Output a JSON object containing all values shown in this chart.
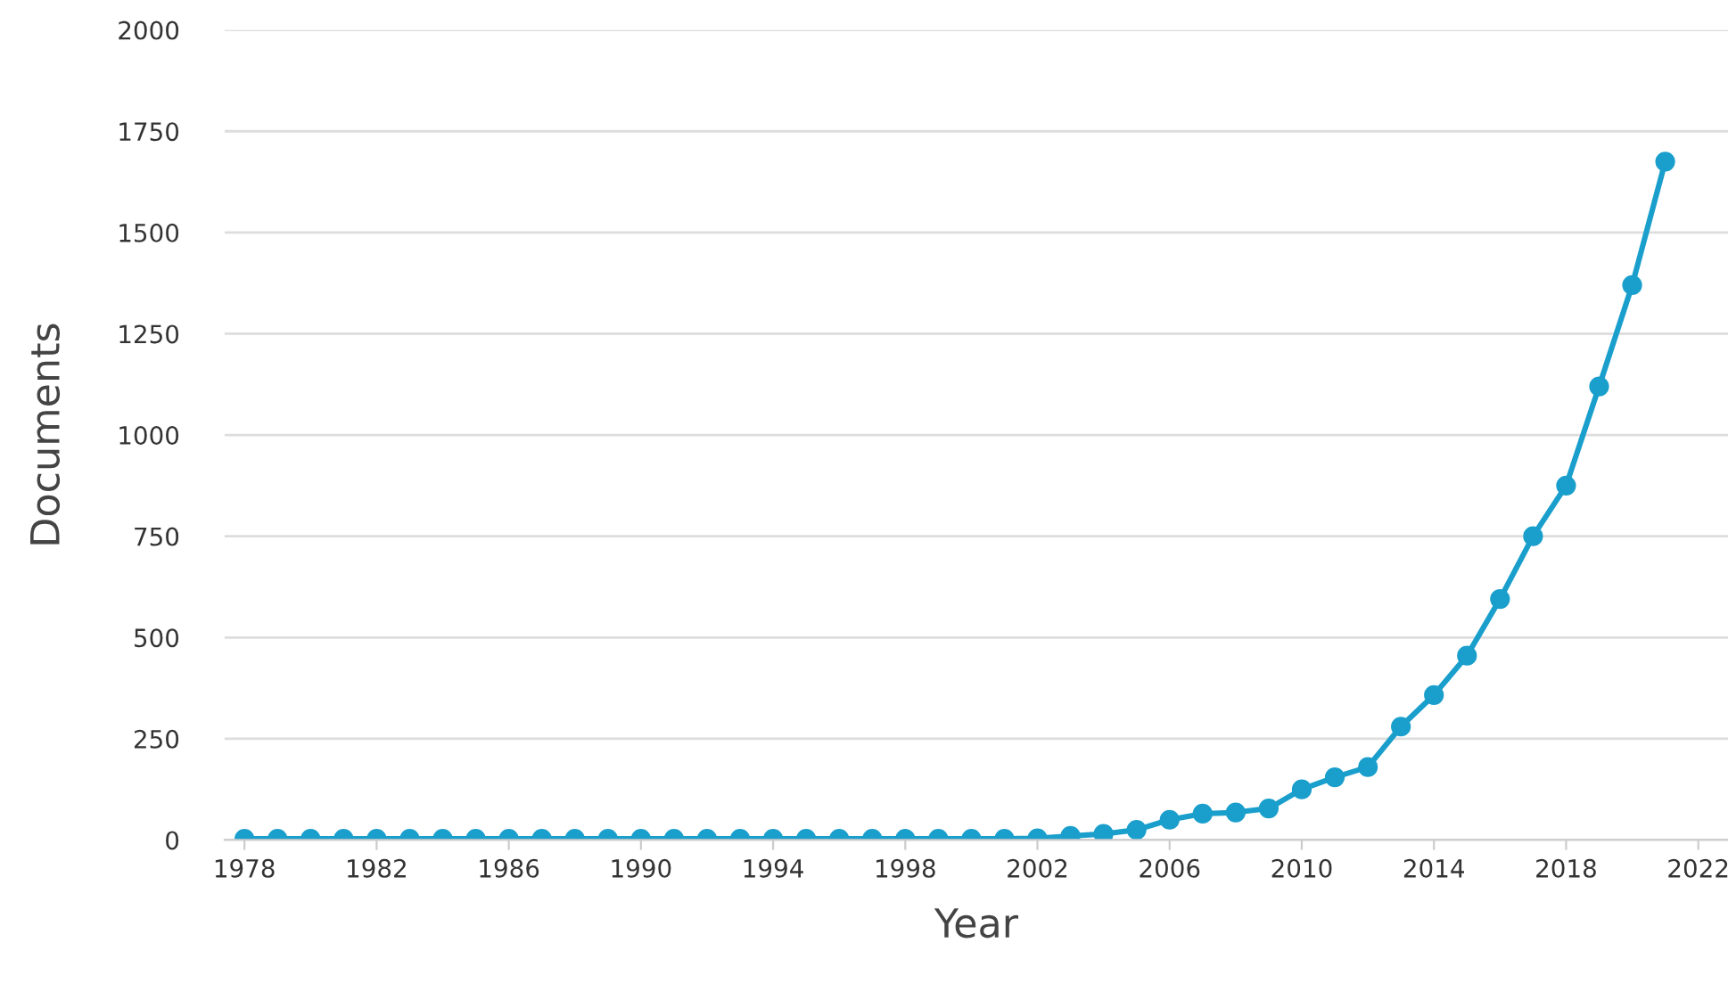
{
  "chart_data": {
    "type": "line",
    "xlabel": "Year",
    "ylabel": "Documents",
    "x": [
      1978,
      1979,
      1980,
      1981,
      1982,
      1983,
      1984,
      1985,
      1986,
      1987,
      1988,
      1989,
      1990,
      1991,
      1992,
      1993,
      1994,
      1995,
      1996,
      1997,
      1998,
      1999,
      2000,
      2001,
      2002,
      2003,
      2004,
      2005,
      2006,
      2007,
      2008,
      2009,
      2010,
      2011,
      2012,
      2013,
      2014,
      2015,
      2016,
      2017,
      2018,
      2019,
      2020,
      2021
    ],
    "series": [
      {
        "color": "#1a9fcc",
        "values": [
          3,
          3,
          3,
          3,
          3,
          3,
          3,
          3,
          3,
          3,
          3,
          3,
          3,
          3,
          3,
          3,
          3,
          3,
          3,
          3,
          3,
          3,
          3,
          3,
          4,
          10,
          15,
          25,
          50,
          65,
          68,
          78,
          125,
          155,
          180,
          280,
          358,
          455,
          595,
          750,
          875,
          1120,
          1370,
          1675
        ]
      }
    ],
    "xlim": [
      1977.4,
      2022.9
    ],
    "xticks": [
      1978,
      1982,
      1986,
      1990,
      1994,
      1998,
      2002,
      2006,
      2010,
      2014,
      2018,
      2022
    ],
    "ylim": [
      0,
      2000
    ],
    "yticks": [
      0,
      250,
      500,
      750,
      1000,
      1250,
      1500,
      1750,
      2000
    ],
    "grid": "y",
    "marker": "circle",
    "line_style": "solid"
  }
}
